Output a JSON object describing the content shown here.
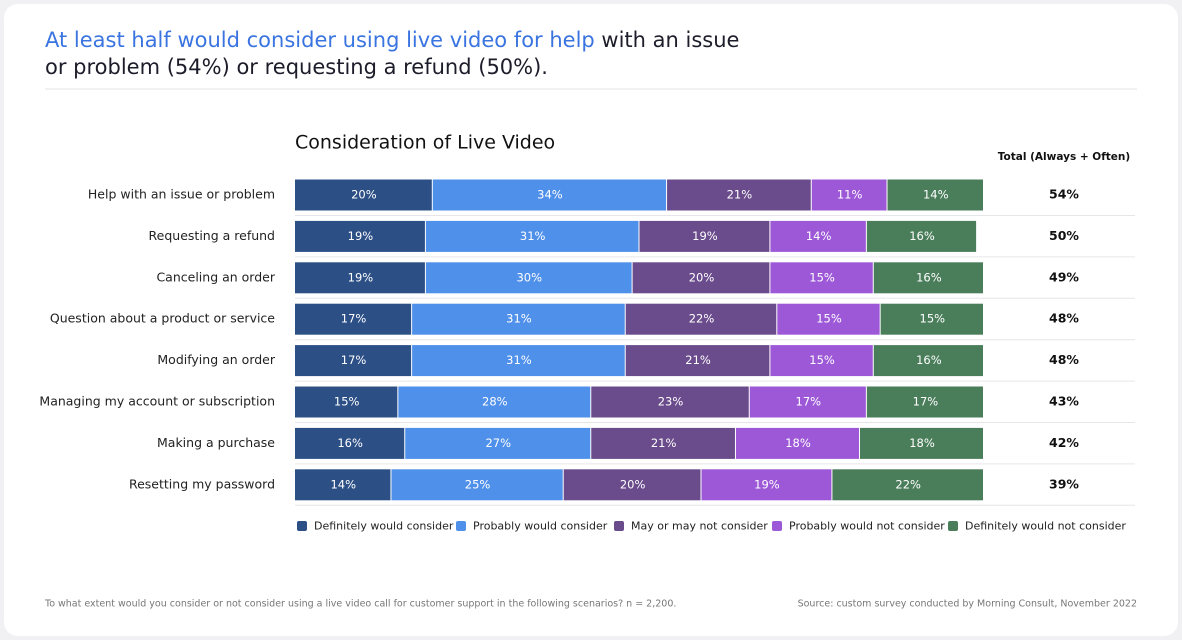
{
  "headline": {
    "highlight": "At least half would consider using live video for help",
    "rest": " with an issue or problem (54%) or requesting a refund (50%)."
  },
  "chart_data": {
    "type": "stacked-bar",
    "orientation": "horizontal",
    "title": "Consideration of Live Video",
    "categories": [
      "Help with an issue or problem",
      "Requesting a refund",
      "Canceling an order",
      "Question about a product or service",
      "Modifying an order",
      "Managing my account or subscription",
      "Making a purchase",
      "Resetting my password"
    ],
    "xlim": [
      0,
      100
    ],
    "series": [
      {
        "name": "Definitely would consider",
        "color": "#2c4f86",
        "values": [
          20,
          19,
          19,
          17,
          17,
          15,
          16,
          14
        ],
        "value_labels": [
          "20%",
          "19%",
          "19%",
          "17%",
          "17%",
          "15%",
          "16%",
          "14%"
        ]
      },
      {
        "name": "Probably would consider",
        "color": "#4f90ea",
        "values": [
          34,
          31,
          30,
          31,
          31,
          28,
          27,
          25
        ],
        "value_labels": [
          "34%",
          "31%",
          "30%",
          "31%",
          "31%",
          "28%",
          "27%",
          "25%"
        ]
      },
      {
        "name": "May or may not consider",
        "color": "#6a4b8b",
        "values": [
          21,
          19,
          20,
          22,
          21,
          23,
          21,
          20
        ],
        "value_labels": [
          "21%",
          "19%",
          "20%",
          "22%",
          "21%",
          "23%",
          "21%",
          "20%"
        ]
      },
      {
        "name": "Probably would not consider",
        "color": "#9d58d8",
        "values": [
          11,
          14,
          15,
          15,
          15,
          17,
          18,
          19
        ],
        "value_labels": [
          "11%",
          "14%",
          "15%",
          "15%",
          "15%",
          "17%",
          "18%",
          "19%"
        ]
      },
      {
        "name": "Definitely would not consider",
        "color": "#4a7e5b",
        "values": [
          14,
          16,
          16,
          15,
          16,
          17,
          18,
          22
        ],
        "value_labels": [
          "14%",
          "16%",
          "16%",
          "15%",
          "16%",
          "17%",
          "18%",
          "22%"
        ]
      }
    ],
    "totals": {
      "header": "Total  (Always + Often)",
      "values": [
        54,
        50,
        49,
        48,
        48,
        43,
        42,
        39
      ],
      "value_labels": [
        "54%",
        "50%",
        "49%",
        "48%",
        "48%",
        "43%",
        "42%",
        "39%"
      ]
    },
    "legend": "bottom"
  },
  "footnote": "To what extent would you consider or not consider using a live video call for customer support in the following scenarios? n = 2,200.",
  "source": "Source: custom survey conducted by Morning Consult, November 2022"
}
